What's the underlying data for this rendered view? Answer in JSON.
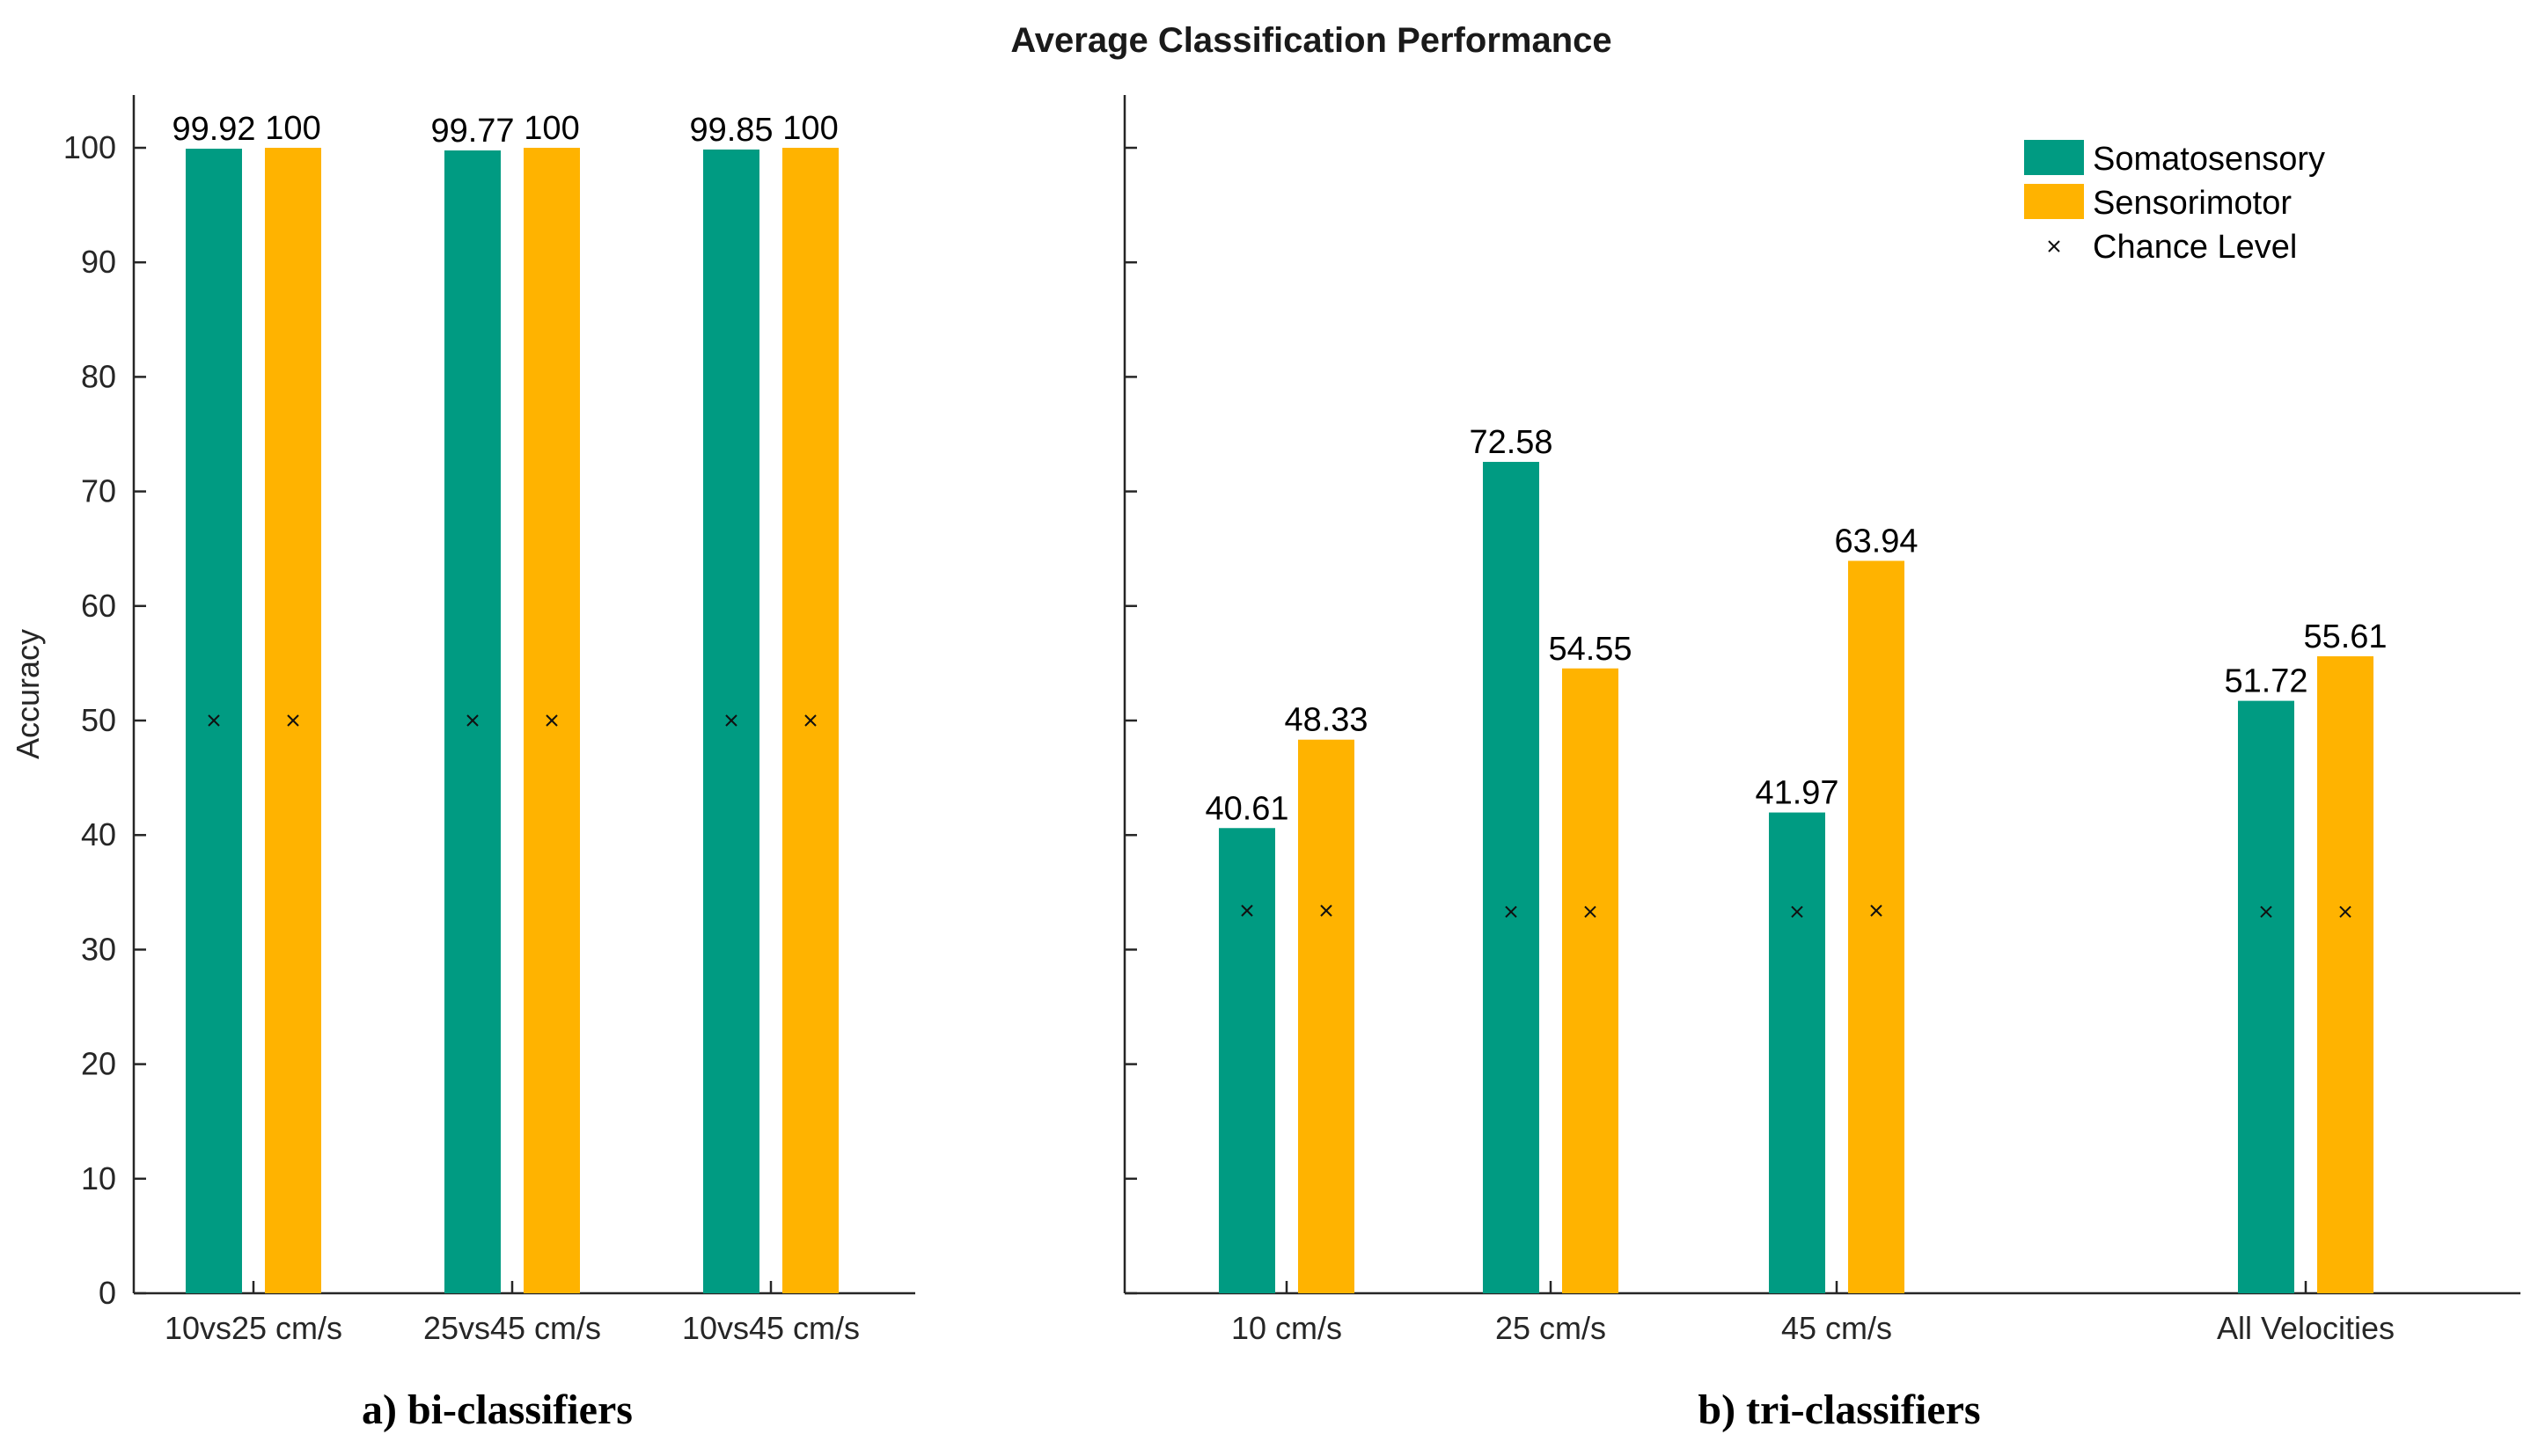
{
  "chart_data": [
    {
      "type": "bar",
      "title": "Average Classification Performance",
      "subtitle": "a) bi-classifiers",
      "ylabel": "Accuracy",
      "ylim": [
        0,
        105
      ],
      "yticks": [
        0,
        10,
        20,
        30,
        40,
        50,
        60,
        70,
        80,
        90,
        100
      ],
      "categories": [
        "10vs25 cm/s",
        "25vs45 cm/s",
        "10vs45 cm/s"
      ],
      "series": [
        {
          "name": "Somatosensory",
          "color": "#009B82",
          "values": [
            99.92,
            99.77,
            99.85
          ],
          "labels": [
            "99.92",
            "99.77",
            "99.85"
          ],
          "chance": [
            50,
            50,
            50
          ]
        },
        {
          "name": "Sensorimotor",
          "color": "#FFB300",
          "values": [
            100,
            100,
            100
          ],
          "labels": [
            "100",
            "100",
            "100"
          ],
          "chance": [
            50,
            50,
            50
          ]
        }
      ]
    },
    {
      "type": "bar",
      "subtitle": "b) tri-classifiers",
      "ylim": [
        0,
        105
      ],
      "categories": [
        "10 cm/s",
        "25 cm/s",
        "45  cm/s",
        "All Velocities"
      ],
      "series": [
        {
          "name": "Somatosensory",
          "color": "#009B82",
          "values": [
            40.61,
            72.58,
            41.97,
            51.72
          ],
          "labels": [
            "40.61",
            "72.58",
            "41.97",
            "51.72"
          ],
          "chance": [
            33.4,
            33.3,
            33.3,
            33.3
          ]
        },
        {
          "name": "Sensorimotor",
          "color": "#FFB300",
          "values": [
            48.33,
            54.55,
            63.94,
            55.61
          ],
          "labels": [
            "48.33",
            "54.55",
            "63.94",
            "55.61"
          ],
          "chance": [
            33.4,
            33.3,
            33.4,
            33.3
          ]
        }
      ],
      "legend": {
        "position": "top-right",
        "entries": [
          {
            "label": "Somatosensory",
            "kind": "bar",
            "color": "#009B82"
          },
          {
            "label": "Sensorimotor",
            "kind": "bar",
            "color": "#FFB300"
          },
          {
            "label": "Chance Level",
            "kind": "marker",
            "marker": "x",
            "color": "#111111"
          }
        ]
      }
    }
  ]
}
